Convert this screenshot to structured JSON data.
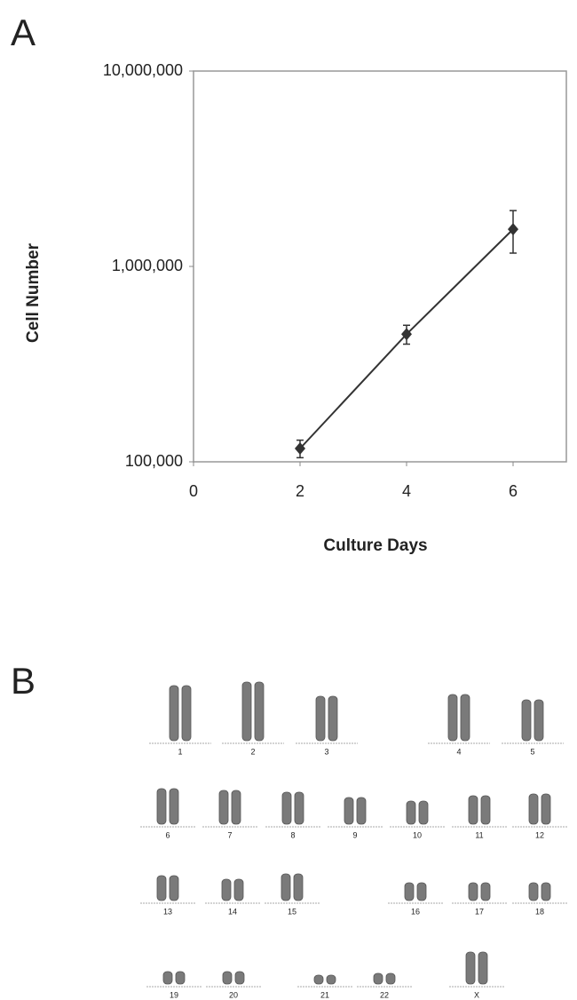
{
  "chart_data": {
    "type": "line",
    "panel_label": "A",
    "x_label": "Culture Days",
    "y_label": "Cell Number",
    "x": [
      2,
      4,
      6
    ],
    "series": [
      {
        "color": "#333333",
        "values": [
          117000,
          450000,
          1550000
        ],
        "errors": [
          12000,
          50000,
          380000
        ]
      }
    ],
    "xlim": [
      0,
      7
    ],
    "xticks": [
      0,
      2,
      4,
      6
    ],
    "ylim": [
      100000,
      10000000
    ],
    "log_y": true,
    "yticks": [
      {
        "value": 100000,
        "label": "100,000"
      },
      {
        "value": 1000000,
        "label": "1,000,000"
      },
      {
        "value": 10000000,
        "label": "10,000,000"
      }
    ],
    "grid": false
  },
  "karyotype": {
    "panel_label": "B",
    "labels": [
      "1",
      "2",
      "3",
      "4",
      "5",
      "6",
      "7",
      "8",
      "9",
      "10",
      "11",
      "12",
      "13",
      "14",
      "15",
      "16",
      "17",
      "18",
      "19",
      "20",
      "21",
      "22",
      "X"
    ]
  }
}
